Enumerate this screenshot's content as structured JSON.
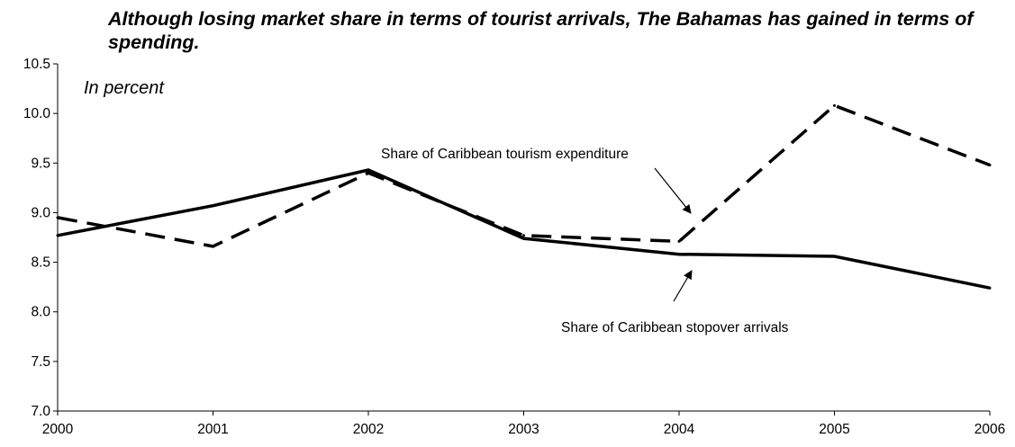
{
  "chart_data": {
    "type": "line",
    "title": "Although losing market share in terms of tourist arrivals, The Bahamas has gained in terms of spending.",
    "subtitle": "In percent",
    "xlabel": "",
    "ylabel": "",
    "x": [
      "2000",
      "2001",
      "2002",
      "2003",
      "2004",
      "2005",
      "2006"
    ],
    "xlim": [
      2000,
      2006
    ],
    "ylim": [
      7.0,
      10.5
    ],
    "yticks": [
      "7.0",
      "7.5",
      "8.0",
      "8.5",
      "9.0",
      "9.5",
      "10.0",
      "10.5"
    ],
    "grid": false,
    "legend": "none (series labelled by annotations with arrows)",
    "series": [
      {
        "name": "Share of Caribbean stopover arrivals",
        "style": "solid",
        "color": "#000000",
        "values": [
          8.77,
          9.07,
          9.43,
          8.74,
          8.58,
          8.56,
          8.24
        ]
      },
      {
        "name": "Share of Caribbean tourism expenditure",
        "style": "dashed",
        "color": "#000000",
        "values": [
          8.95,
          8.66,
          9.4,
          8.77,
          8.71,
          10.08,
          9.48
        ]
      }
    ],
    "annotations": [
      {
        "text": "Share of Caribbean tourism expenditure",
        "series": 1,
        "points_to": "2004"
      },
      {
        "text": "Share of Caribbean stopover arrivals",
        "series": 0,
        "points_to": "2004"
      }
    ]
  }
}
